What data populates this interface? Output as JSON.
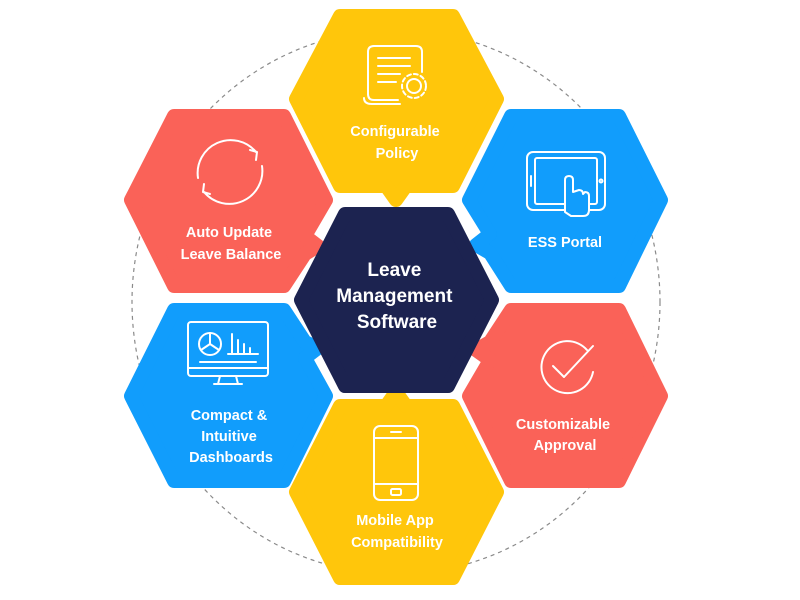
{
  "diagram": {
    "center": {
      "lines": [
        "Leave",
        "Management",
        "Software"
      ],
      "color": "#1c2350"
    },
    "colors": {
      "yellow": "#ffc60b",
      "red": "#fa6258",
      "blue": "#119dfc",
      "ring": "#8a8a8a"
    },
    "nodes": [
      {
        "id": "configurable-policy",
        "lines": [
          "Configurable",
          "Policy"
        ],
        "icon": "document-gear-icon",
        "color": "#ffc60b"
      },
      {
        "id": "ess-portal",
        "lines": [
          "ESS Portal"
        ],
        "icon": "tablet-touch-icon",
        "color": "#119dfc"
      },
      {
        "id": "customizable-approval",
        "lines": [
          "Customizable",
          "Approval"
        ],
        "icon": "checkmark-circle-icon",
        "color": "#fa6258"
      },
      {
        "id": "mobile-app-compatibility",
        "lines": [
          "Mobile App",
          "Compatibility"
        ],
        "icon": "smartphone-icon",
        "color": "#ffc60b"
      },
      {
        "id": "compact-intuitive-dashboards",
        "lines": [
          "Compact &",
          "Intuitive",
          "Dashboards"
        ],
        "icon": "monitor-dashboard-icon",
        "color": "#119dfc"
      },
      {
        "id": "auto-update-leave-balance",
        "lines": [
          "Auto Update",
          "Leave Balance"
        ],
        "icon": "refresh-cycle-icon",
        "color": "#fa6258"
      }
    ]
  }
}
